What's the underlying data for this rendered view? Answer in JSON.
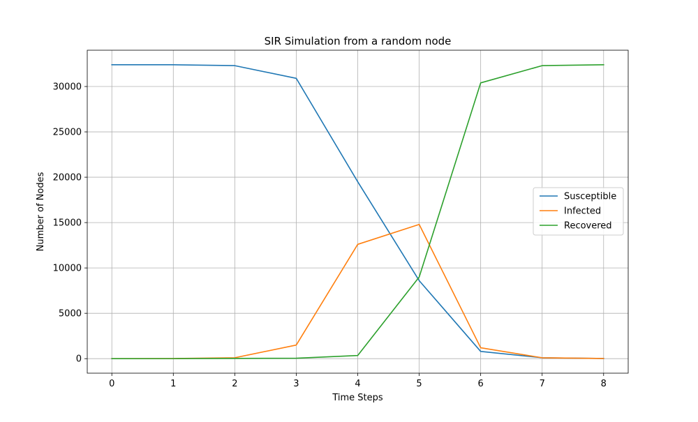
{
  "chart_data": {
    "type": "line",
    "title": "SIR Simulation from a random node",
    "xlabel": "Time Steps",
    "ylabel": "Number of Nodes",
    "x": [
      0,
      1,
      2,
      3,
      4,
      5,
      6,
      7,
      8
    ],
    "xlim": [
      -0.4,
      8.4
    ],
    "ylim": [
      -1600,
      34000
    ],
    "x_ticks": [
      0,
      1,
      2,
      3,
      4,
      5,
      6,
      7,
      8
    ],
    "y_ticks": [
      0,
      5000,
      10000,
      15000,
      20000,
      25000,
      30000
    ],
    "grid": true,
    "legend_position": "center-right",
    "series": [
      {
        "name": "Susceptible",
        "color": "#1f77b4",
        "values": [
          32400,
          32400,
          32300,
          30900,
          19500,
          8600,
          800,
          100,
          20
        ]
      },
      {
        "name": "Infected",
        "color": "#ff7f0e",
        "values": [
          1,
          10,
          100,
          1500,
          12600,
          14800,
          1200,
          100,
          20
        ]
      },
      {
        "name": "Recovered",
        "color": "#2ca02c",
        "values": [
          0,
          5,
          30,
          50,
          350,
          9000,
          30400,
          32300,
          32400
        ]
      }
    ]
  }
}
